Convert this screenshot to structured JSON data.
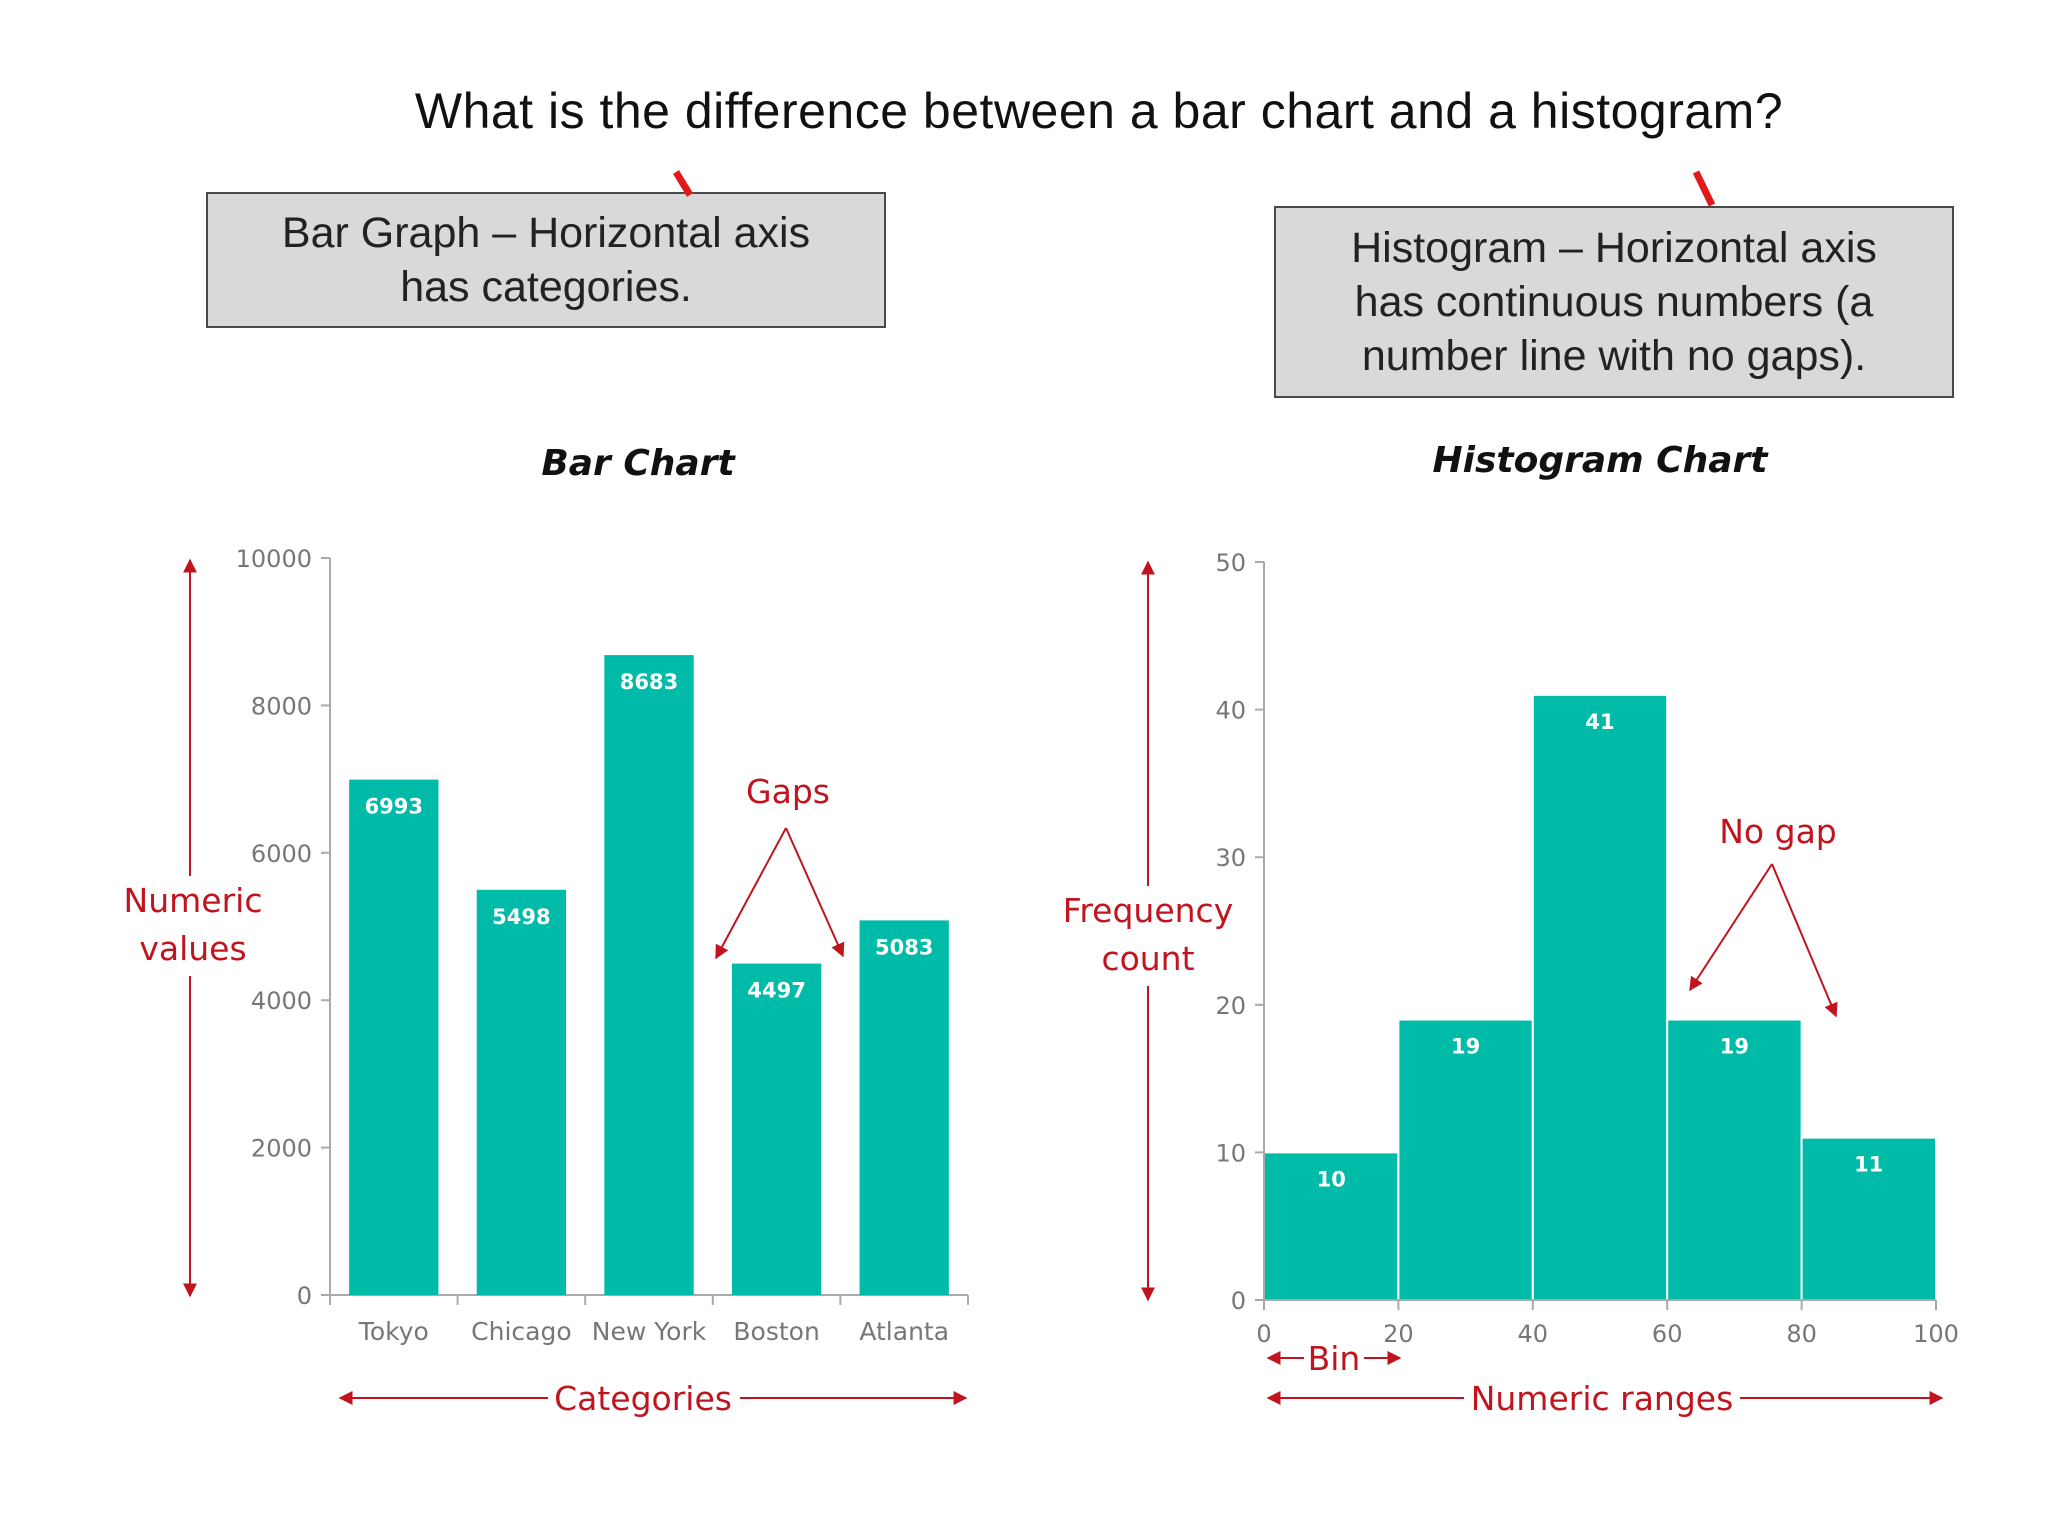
{
  "slide_title": "What is the difference between a bar chart and a histogram?",
  "callouts": {
    "bar": [
      "Bar Graph – Horizontal axis",
      "has categories."
    ],
    "hist": [
      "Histogram – Horizontal axis",
      "has continuous numbers (a",
      "number line with no gaps)."
    ]
  },
  "colors": {
    "bar_fill": "#00bba7",
    "annotation": "#c0141e",
    "axis": "#aaaaaa",
    "callout_bg": "#d9d9d9"
  },
  "annotations": {
    "bar_y": [
      "Numeric",
      "values"
    ],
    "bar_x": "Categories",
    "gaps": "Gaps",
    "hist_y": [
      "Frequency",
      "count"
    ],
    "hist_x": "Numeric ranges",
    "bin": "Bin",
    "no_gap": "No gap"
  },
  "chart_data": [
    {
      "type": "bar",
      "title": "Bar Chart",
      "categories": [
        "Tokyo",
        "Chicago",
        "New York",
        "Boston",
        "Atlanta"
      ],
      "values": [
        6993,
        5498,
        8683,
        4497,
        5083
      ],
      "ylim": [
        0,
        10000
      ],
      "yticks": [
        0,
        2000,
        4000,
        6000,
        8000,
        10000
      ],
      "grid": false,
      "legend": "none"
    },
    {
      "type": "bar",
      "title": "Histogram Chart",
      "bins": [
        [
          0,
          20
        ],
        [
          20,
          40
        ],
        [
          40,
          60
        ],
        [
          60,
          80
        ],
        [
          80,
          100
        ]
      ],
      "values": [
        10,
        19,
        41,
        19,
        11
      ],
      "xticks": [
        0,
        20,
        40,
        60,
        80,
        100
      ],
      "ylim": [
        0,
        50
      ],
      "yticks": [
        0,
        10,
        20,
        30,
        40,
        50
      ],
      "grid": false,
      "legend": "none"
    }
  ]
}
